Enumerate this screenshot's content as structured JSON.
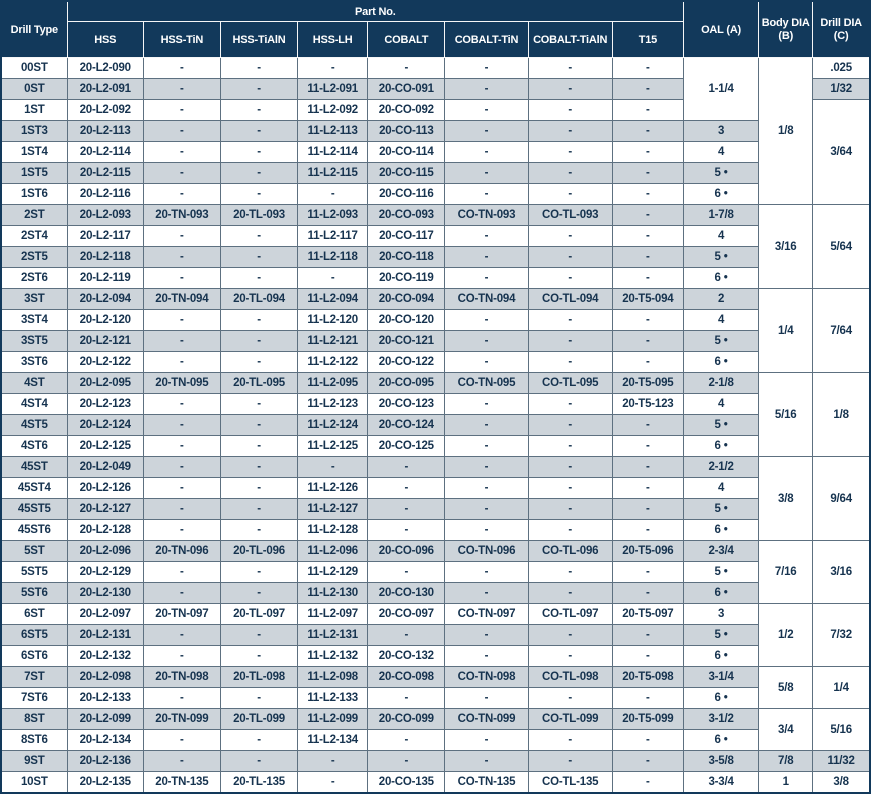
{
  "colors": {
    "header_bg": "#12395b",
    "header_text": "#ffffff",
    "row_stripe": "#cdd4da",
    "grid_line": "#5d7080",
    "body_text": "#16334f"
  },
  "table": {
    "header": {
      "drill_type": "Drill Type",
      "part_group": "Part No.",
      "part_columns": [
        "HSS",
        "HSS-TiN",
        "HSS-TiAlN",
        "HSS-LH",
        "COBALT",
        "COBALT-TiN",
        "COBALT-TiAlN",
        "T15"
      ],
      "oal": "OAL (A)",
      "body_dia": "Body DIA\n(B)",
      "drill_dia": "Drill DIA\n(C)"
    },
    "rows": [
      {
        "type": "00ST",
        "parts": [
          "20-L2-090",
          "-",
          "-",
          "-",
          "-",
          "-",
          "-",
          "-"
        ],
        "oal": {
          "text": "1-1/4",
          "rowspan": 3
        },
        "body": {
          "text": "1/8",
          "rowspan": 7
        },
        "drill": {
          "text": ".025",
          "rowspan": 1
        }
      },
      {
        "type": "0ST",
        "parts": [
          "20-L2-091",
          "-",
          "-",
          "11-L2-091",
          "20-CO-091",
          "-",
          "-",
          "-"
        ],
        "drill": {
          "text": "1/32",
          "rowspan": 1
        }
      },
      {
        "type": "1ST",
        "parts": [
          "20-L2-092",
          "-",
          "-",
          "11-L2-092",
          "20-CO-092",
          "-",
          "-",
          "-"
        ],
        "drill": {
          "text": "3/64",
          "rowspan": 5
        }
      },
      {
        "type": "1ST3",
        "parts": [
          "20-L2-113",
          "-",
          "-",
          "11-L2-113",
          "20-CO-113",
          "-",
          "-",
          "-"
        ],
        "oal": {
          "text": "3",
          "rowspan": 1
        }
      },
      {
        "type": "1ST4",
        "parts": [
          "20-L2-114",
          "-",
          "-",
          "11-L2-114",
          "20-CO-114",
          "-",
          "-",
          "-"
        ],
        "oal": {
          "text": "4",
          "rowspan": 1
        }
      },
      {
        "type": "1ST5",
        "parts": [
          "20-L2-115",
          "-",
          "-",
          "11-L2-115",
          "20-CO-115",
          "-",
          "-",
          "-"
        ],
        "oal": {
          "text": "5 •",
          "rowspan": 1
        }
      },
      {
        "type": "1ST6",
        "parts": [
          "20-L2-116",
          "-",
          "-",
          "-",
          "20-CO-116",
          "-",
          "-",
          "-"
        ],
        "oal": {
          "text": "6 •",
          "rowspan": 1
        }
      },
      {
        "type": "2ST",
        "parts": [
          "20-L2-093",
          "20-TN-093",
          "20-TL-093",
          "11-L2-093",
          "20-CO-093",
          "CO-TN-093",
          "CO-TL-093",
          "-"
        ],
        "oal": {
          "text": "1-7/8",
          "rowspan": 1
        },
        "body": {
          "text": "3/16",
          "rowspan": 4
        },
        "drill": {
          "text": "5/64",
          "rowspan": 4
        }
      },
      {
        "type": "2ST4",
        "parts": [
          "20-L2-117",
          "-",
          "-",
          "11-L2-117",
          "20-CO-117",
          "-",
          "-",
          "-"
        ],
        "oal": {
          "text": "4",
          "rowspan": 1
        }
      },
      {
        "type": "2ST5",
        "parts": [
          "20-L2-118",
          "-",
          "-",
          "11-L2-118",
          "20-CO-118",
          "-",
          "-",
          "-"
        ],
        "oal": {
          "text": "5 •",
          "rowspan": 1
        }
      },
      {
        "type": "2ST6",
        "parts": [
          "20-L2-119",
          "-",
          "-",
          "-",
          "20-CO-119",
          "-",
          "-",
          "-"
        ],
        "oal": {
          "text": "6 •",
          "rowspan": 1
        }
      },
      {
        "type": "3ST",
        "parts": [
          "20-L2-094",
          "20-TN-094",
          "20-TL-094",
          "11-L2-094",
          "20-CO-094",
          "CO-TN-094",
          "CO-TL-094",
          "20-T5-094"
        ],
        "oal": {
          "text": "2",
          "rowspan": 1
        },
        "body": {
          "text": "1/4",
          "rowspan": 4
        },
        "drill": {
          "text": "7/64",
          "rowspan": 4
        }
      },
      {
        "type": "3ST4",
        "parts": [
          "20-L2-120",
          "-",
          "-",
          "11-L2-120",
          "20-CO-120",
          "-",
          "-",
          "-"
        ],
        "oal": {
          "text": "4",
          "rowspan": 1
        }
      },
      {
        "type": "3ST5",
        "parts": [
          "20-L2-121",
          "-",
          "-",
          "11-L2-121",
          "20-CO-121",
          "-",
          "-",
          "-"
        ],
        "oal": {
          "text": "5 •",
          "rowspan": 1
        }
      },
      {
        "type": "3ST6",
        "parts": [
          "20-L2-122",
          "-",
          "-",
          "11-L2-122",
          "20-CO-122",
          "-",
          "-",
          "-"
        ],
        "oal": {
          "text": "6 •",
          "rowspan": 1
        }
      },
      {
        "type": "4ST",
        "parts": [
          "20-L2-095",
          "20-TN-095",
          "20-TL-095",
          "11-L2-095",
          "20-CO-095",
          "CO-TN-095",
          "CO-TL-095",
          "20-T5-095"
        ],
        "oal": {
          "text": "2-1/8",
          "rowspan": 1
        },
        "body": {
          "text": "5/16",
          "rowspan": 4
        },
        "drill": {
          "text": "1/8",
          "rowspan": 4
        }
      },
      {
        "type": "4ST4",
        "parts": [
          "20-L2-123",
          "-",
          "-",
          "11-L2-123",
          "20-CO-123",
          "-",
          "-",
          "20-T5-123"
        ],
        "oal": {
          "text": "4",
          "rowspan": 1
        }
      },
      {
        "type": "4ST5",
        "parts": [
          "20-L2-124",
          "-",
          "-",
          "11-L2-124",
          "20-CO-124",
          "-",
          "-",
          "-"
        ],
        "oal": {
          "text": "5 •",
          "rowspan": 1
        }
      },
      {
        "type": "4ST6",
        "parts": [
          "20-L2-125",
          "-",
          "-",
          "11-L2-125",
          "20-CO-125",
          "-",
          "-",
          "-"
        ],
        "oal": {
          "text": "6 •",
          "rowspan": 1
        }
      },
      {
        "type": "45ST",
        "parts": [
          "20-L2-049",
          "-",
          "-",
          "-",
          "-",
          "-",
          "-",
          "-"
        ],
        "oal": {
          "text": "2-1/2",
          "rowspan": 1
        },
        "body": {
          "text": "3/8",
          "rowspan": 4
        },
        "drill": {
          "text": "9/64",
          "rowspan": 4
        }
      },
      {
        "type": "45ST4",
        "parts": [
          "20-L2-126",
          "-",
          "-",
          "11-L2-126",
          "-",
          "-",
          "-",
          "-"
        ],
        "oal": {
          "text": "4",
          "rowspan": 1
        }
      },
      {
        "type": "45ST5",
        "parts": [
          "20-L2-127",
          "-",
          "-",
          "11-L2-127",
          "-",
          "-",
          "-",
          "-"
        ],
        "oal": {
          "text": "5 •",
          "rowspan": 1
        }
      },
      {
        "type": "45ST6",
        "parts": [
          "20-L2-128",
          "-",
          "-",
          "11-L2-128",
          "-",
          "-",
          "-",
          "-"
        ],
        "oal": {
          "text": "6 •",
          "rowspan": 1
        }
      },
      {
        "type": "5ST",
        "parts": [
          "20-L2-096",
          "20-TN-096",
          "20-TL-096",
          "11-L2-096",
          "20-CO-096",
          "CO-TN-096",
          "CO-TL-096",
          "20-T5-096"
        ],
        "oal": {
          "text": "2-3/4",
          "rowspan": 1
        },
        "body": {
          "text": "7/16",
          "rowspan": 3
        },
        "drill": {
          "text": "3/16",
          "rowspan": 3
        }
      },
      {
        "type": "5ST5",
        "parts": [
          "20-L2-129",
          "-",
          "-",
          "11-L2-129",
          "-",
          "-",
          "-",
          "-"
        ],
        "oal": {
          "text": "5 •",
          "rowspan": 1
        }
      },
      {
        "type": "5ST6",
        "parts": [
          "20-L2-130",
          "-",
          "-",
          "11-L2-130",
          "20-CO-130",
          "-",
          "-",
          "-"
        ],
        "oal": {
          "text": "6 •",
          "rowspan": 1
        }
      },
      {
        "type": "6ST",
        "parts": [
          "20-L2-097",
          "20-TN-097",
          "20-TL-097",
          "11-L2-097",
          "20-CO-097",
          "CO-TN-097",
          "CO-TL-097",
          "20-T5-097"
        ],
        "oal": {
          "text": "3",
          "rowspan": 1
        },
        "body": {
          "text": "1/2",
          "rowspan": 3
        },
        "drill": {
          "text": "7/32",
          "rowspan": 3
        }
      },
      {
        "type": "6ST5",
        "parts": [
          "20-L2-131",
          "-",
          "-",
          "11-L2-131",
          "-",
          "-",
          "-",
          "-"
        ],
        "oal": {
          "text": "5 •",
          "rowspan": 1
        }
      },
      {
        "type": "6ST6",
        "parts": [
          "20-L2-132",
          "-",
          "-",
          "11-L2-132",
          "20-CO-132",
          "-",
          "-",
          "-"
        ],
        "oal": {
          "text": "6 •",
          "rowspan": 1
        }
      },
      {
        "type": "7ST",
        "parts": [
          "20-L2-098",
          "20-TN-098",
          "20-TL-098",
          "11-L2-098",
          "20-CO-098",
          "CO-TN-098",
          "CO-TL-098",
          "20-T5-098"
        ],
        "oal": {
          "text": "3-1/4",
          "rowspan": 1
        },
        "body": {
          "text": "5/8",
          "rowspan": 2
        },
        "drill": {
          "text": "1/4",
          "rowspan": 2
        }
      },
      {
        "type": "7ST6",
        "parts": [
          "20-L2-133",
          "-",
          "-",
          "11-L2-133",
          "-",
          "-",
          "-",
          "-"
        ],
        "oal": {
          "text": "6 •",
          "rowspan": 1
        }
      },
      {
        "type": "8ST",
        "parts": [
          "20-L2-099",
          "20-TN-099",
          "20-TL-099",
          "11-L2-099",
          "20-CO-099",
          "CO-TN-099",
          "CO-TL-099",
          "20-T5-099"
        ],
        "oal": {
          "text": "3-1/2",
          "rowspan": 1
        },
        "body": {
          "text": "3/4",
          "rowspan": 2
        },
        "drill": {
          "text": "5/16",
          "rowspan": 2
        }
      },
      {
        "type": "8ST6",
        "parts": [
          "20-L2-134",
          "-",
          "-",
          "11-L2-134",
          "-",
          "-",
          "-",
          "-"
        ],
        "oal": {
          "text": "6 •",
          "rowspan": 1
        }
      },
      {
        "type": "9ST",
        "parts": [
          "20-L2-136",
          "-",
          "-",
          "-",
          "-",
          "-",
          "-",
          "-"
        ],
        "oal": {
          "text": "3-5/8",
          "rowspan": 1
        },
        "body": {
          "text": "7/8",
          "rowspan": 1
        },
        "drill": {
          "text": "11/32",
          "rowspan": 1
        }
      },
      {
        "type": "10ST",
        "parts": [
          "20-L2-135",
          "20-TN-135",
          "20-TL-135",
          "-",
          "20-CO-135",
          "CO-TN-135",
          "CO-TL-135",
          "-"
        ],
        "oal": {
          "text": "3-3/4",
          "rowspan": 1
        },
        "body": {
          "text": "1",
          "rowspan": 1
        },
        "drill": {
          "text": "3/8",
          "rowspan": 1
        }
      }
    ]
  }
}
